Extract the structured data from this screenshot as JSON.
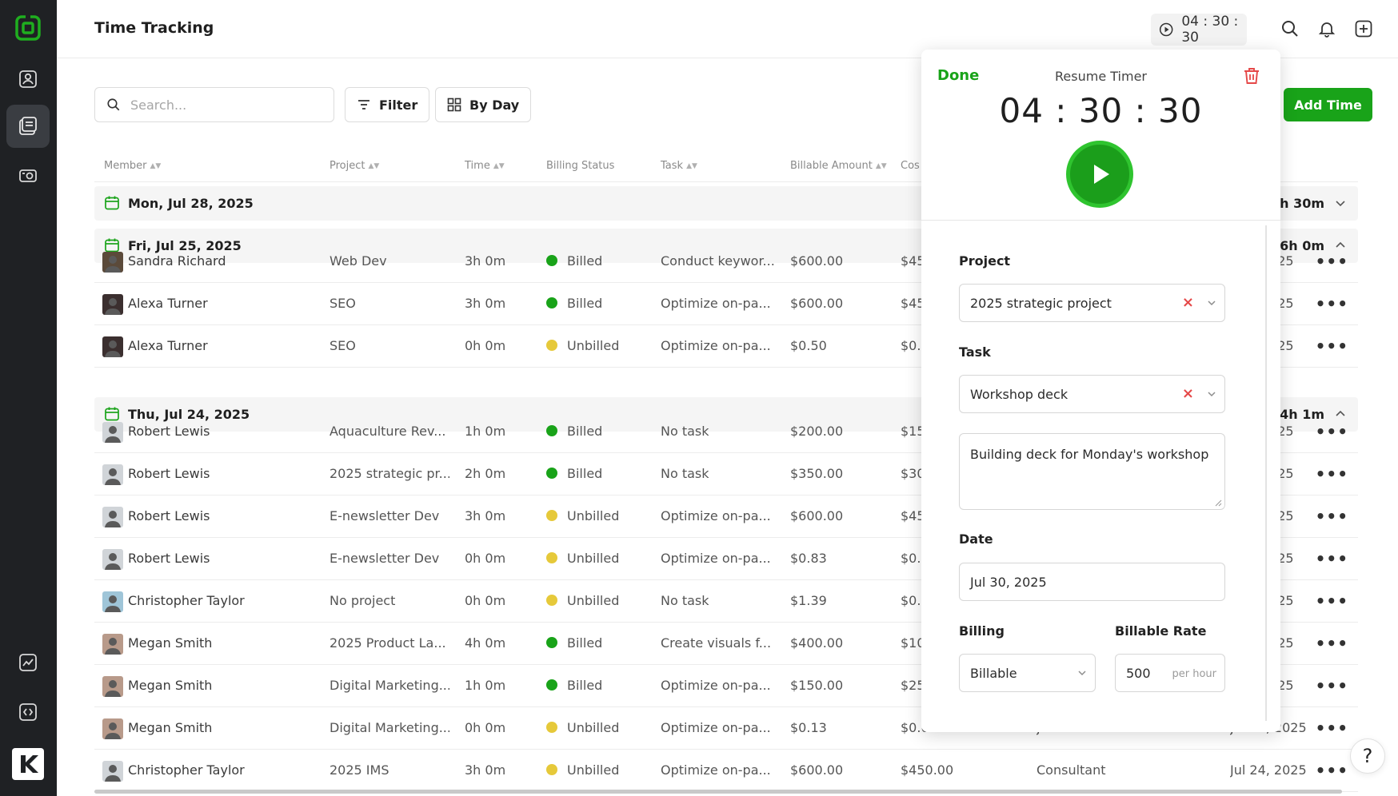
{
  "header": {
    "title": "Time Tracking",
    "timer": "04 : 30 : 30"
  },
  "toolbar": {
    "search_placeholder": "Search...",
    "filter_label": "Filter",
    "view_label": "By Day",
    "add_time_label": "Add Time"
  },
  "table": {
    "columns": [
      "Member",
      "Project",
      "Time",
      "Billing Status",
      "Task",
      "Billable Amount",
      "Cos"
    ],
    "groups": [
      {
        "date": "Mon, Jul 28, 2025",
        "total": "2h 30m",
        "expanded": false,
        "rows": []
      },
      {
        "date": "Fri, Jul 25, 2025",
        "total": "6h 0m",
        "expanded": true,
        "rows": [
          {
            "member": "Sandra Richard",
            "project": "Web Dev",
            "time": "3h 0m",
            "status": "Billed",
            "task": "Conduct keywor...",
            "amount": "$600.00",
            "cost": "$45",
            "date_tail": ")25"
          },
          {
            "member": "Alexa Turner",
            "project": "SEO",
            "time": "3h 0m",
            "status": "Billed",
            "task": "Optimize on-pa...",
            "amount": "$600.00",
            "cost": "$45",
            "date_tail": ")25"
          },
          {
            "member": "Alexa Turner",
            "project": "SEO",
            "time": "0h 0m",
            "status": "Unbilled",
            "task": "Optimize on-pa...",
            "amount": "$0.50",
            "cost": "$0.",
            "date_tail": ")25"
          }
        ]
      },
      {
        "date": "Thu, Jul 24, 2025",
        "total": "14h 1m",
        "expanded": true,
        "rows": [
          {
            "member": "Robert Lewis",
            "project": "Aquaculture Rev...",
            "time": "1h 0m",
            "status": "Billed",
            "task": "No task",
            "amount": "$200.00",
            "cost": "$15",
            "date_tail": ")25"
          },
          {
            "member": "Robert Lewis",
            "project": "2025 strategic pr...",
            "time": "2h 0m",
            "status": "Billed",
            "task": "No task",
            "amount": "$350.00",
            "cost": "$30",
            "date_tail": ")25"
          },
          {
            "member": "Robert Lewis",
            "project": "E-newsletter Dev",
            "time": "3h 0m",
            "status": "Unbilled",
            "task": "Optimize on-pa...",
            "amount": "$600.00",
            "cost": "$45",
            "date_tail": ")25"
          },
          {
            "member": "Robert Lewis",
            "project": "E-newsletter Dev",
            "time": "0h 0m",
            "status": "Unbilled",
            "task": "Optimize on-pa...",
            "amount": "$0.83",
            "cost": "$0.",
            "date_tail": ")25"
          },
          {
            "member": "Christopher Taylor",
            "project": "No project",
            "time": "0h 0m",
            "status": "Unbilled",
            "task": "No task",
            "amount": "$1.39",
            "cost": "$0.",
            "date_tail": ")25"
          },
          {
            "member": "Megan Smith",
            "project": "2025 Product La...",
            "time": "4h 0m",
            "status": "Billed",
            "task": "Create visuals f...",
            "amount": "$400.00",
            "cost": "$10",
            "date_tail": ")25"
          },
          {
            "member": "Megan Smith",
            "project": "Digital Marketing...",
            "time": "1h 0m",
            "status": "Billed",
            "task": "Optimize on-pa...",
            "amount": "$150.00",
            "cost": "$25",
            "date_tail": ")25"
          },
          {
            "member": "Megan Smith",
            "project": "Digital Marketing...",
            "time": "0h 0m",
            "status": "Unbilled",
            "task": "Optimize on-pa...",
            "amount": "$0.13",
            "cost": "$0.02",
            "role": "Junior Consultant",
            "date_full": "Jul 24, 2025"
          },
          {
            "member": "Christopher Taylor",
            "project": "2025 IMS",
            "time": "3h 0m",
            "status": "Unbilled",
            "task": "Optimize on-pa...",
            "amount": "$600.00",
            "cost": "$450.00",
            "role": "Consultant",
            "date_full": "Jul 24, 2025"
          }
        ]
      }
    ]
  },
  "popover": {
    "done_label": "Done",
    "title": "Resume Timer",
    "timer": "04 : 30 : 30",
    "project_label": "Project",
    "project_value": "2025 strategic project",
    "task_label": "Task",
    "task_value": "Workshop deck",
    "notes_value": "Building deck for Monday's workshop",
    "date_label": "Date",
    "date_value": "Jul 30, 2025",
    "billing_label": "Billing",
    "billing_value": "Billable",
    "rate_label": "Billable Rate",
    "rate_value": "500",
    "rate_unit": "per hour"
  },
  "help_label": "?",
  "colors": {
    "green": "#19a319",
    "yellow": "#e6c93a",
    "sidebar": "#1f2124",
    "danger": "#e54848"
  }
}
